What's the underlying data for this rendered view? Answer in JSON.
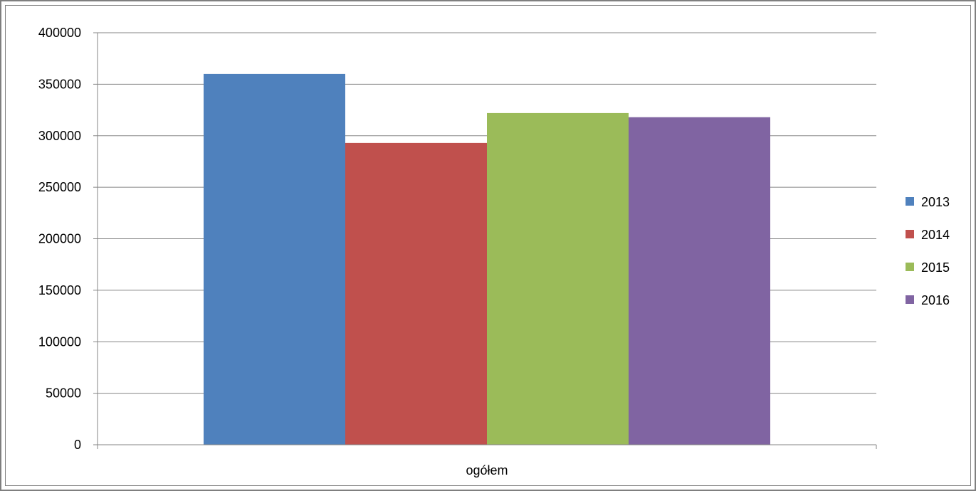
{
  "chart_data": {
    "type": "bar",
    "categories": [
      "ogółem"
    ],
    "series": [
      {
        "name": "2013",
        "values": [
          360000
        ],
        "color": "#4f81bd"
      },
      {
        "name": "2014",
        "values": [
          293000
        ],
        "color": "#c0504d"
      },
      {
        "name": "2015",
        "values": [
          322000
        ],
        "color": "#9bbb59"
      },
      {
        "name": "2016",
        "values": [
          318000
        ],
        "color": "#8064a2"
      }
    ],
    "yticks": [
      "400000",
      "350000",
      "300000",
      "250000",
      "200000",
      "150000",
      "100000",
      "50000",
      "0"
    ],
    "ylim": [
      0,
      400000
    ],
    "grid": true,
    "legend": "right"
  }
}
